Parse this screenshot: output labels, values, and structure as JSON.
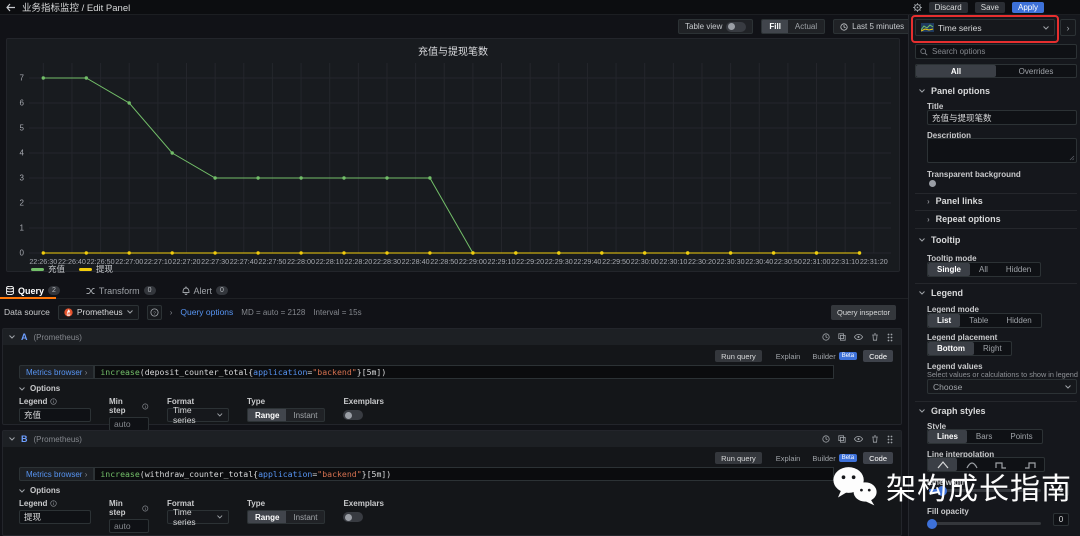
{
  "header": {
    "title": "业务指标监控 / Edit Panel",
    "discard": "Discard",
    "save": "Save",
    "apply": "Apply"
  },
  "toolbar": {
    "table_view": "Table view",
    "fill": "Fill",
    "actual": "Actual",
    "time_range": "Last 5 minutes"
  },
  "chart_data": {
    "type": "line",
    "title": "充值与提现笔数",
    "x_ticks": [
      "22:26:30",
      "22:26:40",
      "22:26:50",
      "22:27:00",
      "22:27:10",
      "22:27:20",
      "22:27:30",
      "22:27:40",
      "22:27:50",
      "22:28:00",
      "22:28:10",
      "22:28:20",
      "22:28:30",
      "22:28:40",
      "22:28:50",
      "22:29:00",
      "22:29:10",
      "22:29:20",
      "22:29:30",
      "22:29:40",
      "22:29:50",
      "22:30:00",
      "22:30:10",
      "22:30:20",
      "22:30:30",
      "22:30:40",
      "22:30:50",
      "22:31:00",
      "22:31:10",
      "22:31:20"
    ],
    "tick_interval_sec": 10,
    "point_interval_sec": 15,
    "y_ticks": [
      0,
      1,
      2,
      3,
      4,
      5,
      6,
      7
    ],
    "ylim": [
      0,
      7.6
    ],
    "grid": true,
    "legend_position": "bottom",
    "series": [
      {
        "name": "充值",
        "color": "#73bf69",
        "values": [
          7,
          7,
          6,
          4,
          3,
          3,
          3,
          3,
          3,
          3,
          0,
          0,
          0,
          0,
          0,
          0,
          0,
          0,
          0,
          0
        ]
      },
      {
        "name": "提现",
        "color": "#f2cc0c",
        "values": [
          0,
          0,
          0,
          0,
          0,
          0,
          0,
          0,
          0,
          0,
          0,
          0,
          0,
          0,
          0,
          0,
          0,
          0,
          0,
          0
        ]
      }
    ]
  },
  "query_tabs": {
    "query": "Query",
    "query_count": "2",
    "transform": "Transform",
    "transform_count": "0",
    "alert": "Alert",
    "alert_count": "0"
  },
  "datasource": {
    "label": "Data source",
    "name": "Prometheus",
    "query_options_label": "Query options",
    "max_data_points": "MD = auto = 2128",
    "interval": "Interval = 15s",
    "inspector": "Query inspector"
  },
  "query_ui": {
    "run": "Run query",
    "explain": "Explain",
    "builder": "Builder",
    "beta": "Beta",
    "code": "Code",
    "metrics_browser": "Metrics browser",
    "options": "Options",
    "legend": "Legend",
    "min_step": "Min step",
    "min_step_value": "auto",
    "format": "Format",
    "format_value": "Time series",
    "type": "Type",
    "range": "Range",
    "instant": "Instant",
    "exemplars": "Exemplars"
  },
  "queries": [
    {
      "ref": "A",
      "ds": "(Prometheus)",
      "legend_value": "充值",
      "code": {
        "fn": "increase",
        "open": "(deposit_counter_total{",
        "label": "application",
        "eq": "=",
        "str": "\"backend\"",
        "close": "}[5m])"
      }
    },
    {
      "ref": "B",
      "ds": "(Prometheus)",
      "legend_value": "提现",
      "code": {
        "fn": "increase",
        "open": "(withdraw_counter_total{",
        "label": "application",
        "eq": "=",
        "str": "\"backend\"",
        "close": "}[5m])"
      }
    }
  ],
  "right": {
    "viz_picker": "Time series",
    "search_placeholder": "Search options",
    "tabs": {
      "all": "All",
      "overrides": "Overrides"
    },
    "panel_options": {
      "section": "Panel options",
      "title_label": "Title",
      "title_value": "充值与提现笔数",
      "description_label": "Description",
      "transparent_label": "Transparent background",
      "panel_links": "Panel links",
      "repeat_options": "Repeat options"
    },
    "tooltip": {
      "section": "Tooltip",
      "mode_label": "Tooltip mode",
      "options": [
        "Single",
        "All",
        "Hidden"
      ]
    },
    "legend": {
      "section": "Legend",
      "mode_label": "Legend mode",
      "mode_options": [
        "List",
        "Table",
        "Hidden"
      ],
      "placement_label": "Legend placement",
      "placement_options": [
        "Bottom",
        "Right"
      ],
      "values_label": "Legend values",
      "values_desc": "Select values or calculations to show in legend",
      "values_placeholder": "Choose"
    },
    "graph_styles": {
      "section": "Graph styles",
      "style_label": "Style",
      "style_options": [
        "Lines",
        "Bars",
        "Points"
      ],
      "line_interpolation_label": "Line interpolation",
      "line_width_label": "Line width",
      "line_width_value": "1",
      "fill_opacity_label": "Fill opacity",
      "fill_opacity_value": "0"
    }
  },
  "watermark": {
    "text": "架构成长指南"
  }
}
